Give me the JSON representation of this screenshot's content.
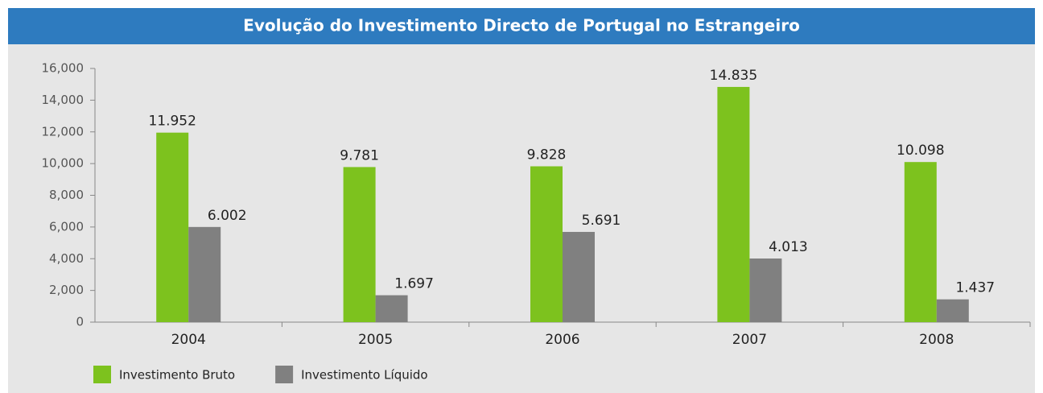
{
  "chart_data": {
    "type": "bar",
    "title": "Evolução do Investimento Directo de Portugal no Estrangeiro",
    "categories": [
      "2004",
      "2005",
      "2006",
      "2007",
      "2008"
    ],
    "series": [
      {
        "name": "Investimento Bruto",
        "color": "#7dc21e",
        "values": [
          11952,
          9781,
          9828,
          14835,
          10098
        ],
        "value_labels": [
          "11.952",
          "9.781",
          "9.828",
          "14.835",
          "10.098"
        ]
      },
      {
        "name": "Investimento Líquido",
        "color": "#808080",
        "values": [
          6002,
          1697,
          5691,
          4013,
          1437
        ],
        "value_labels": [
          "6.002",
          "1.697",
          "5.691",
          "4.013",
          "1.437"
        ]
      }
    ],
    "ylim": [
      0,
      16000
    ],
    "yticks": [
      0,
      {
        "value": 2000,
        "label": "2,000"
      },
      {
        "value": 4000,
        "label": "4,000"
      },
      {
        "value": 6000,
        "label": "6,000"
      },
      {
        "value": 8000,
        "label": "8,000"
      },
      {
        "value": 10000,
        "label": "10,000"
      },
      {
        "value": 12000,
        "label": "12,000"
      },
      {
        "value": 14000,
        "label": "14,000"
      },
      {
        "value": 16000,
        "label": "16,000"
      }
    ],
    "legend": "bottom-left"
  }
}
